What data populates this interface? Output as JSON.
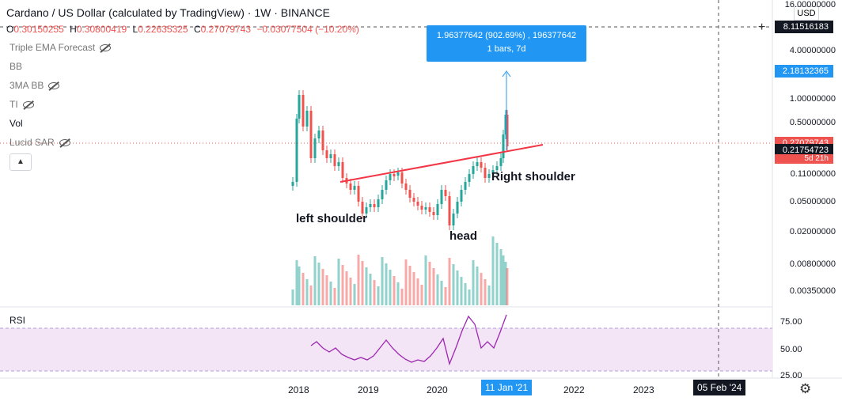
{
  "header": {
    "title": "Cardano / US Dollar (calculated by TradingView) · 1W · BINANCE",
    "ohlc": {
      "o_label": "O",
      "o_value": "0.30150255",
      "h_label": "H",
      "h_value": "0.30800419",
      "l_label": "L",
      "l_value": "0.22635325",
      "c_label": "C",
      "c_value": "0.27079743",
      "change": "−0.03077504 (−10.20%)"
    }
  },
  "indicators": [
    {
      "label": "Triple EMA Forecast",
      "hidden": true
    },
    {
      "label": "BB",
      "hidden": false
    },
    {
      "label": "3MA BB",
      "hidden": true
    },
    {
      "label": "TI",
      "hidden": true
    },
    {
      "label": "Vol",
      "hidden": false
    },
    {
      "label": "Lucid SAR",
      "hidden": true
    }
  ],
  "currency_badge": "USD",
  "price_axis": [
    "16.00000000",
    "4.00000000",
    "1.00000000",
    "0.50000000",
    "0.11000000",
    "0.05000000",
    "0.02000000",
    "0.00800000",
    "0.00350000"
  ],
  "price_tags": {
    "crosshair": "8.11516183",
    "target": "2.18132365",
    "last": "0.27079743",
    "current": "0.21754723",
    "countdown": "5d 21h"
  },
  "measure": {
    "line1": "1.96377642 (902.69%) , 196377642",
    "line2": "1 bars, 7d"
  },
  "annotations": {
    "left": "left shoulder",
    "head": "head",
    "right": "Right shoulder"
  },
  "rsi": {
    "label": "RSI",
    "axis": [
      "75.00",
      "50.00",
      "25.00"
    ]
  },
  "time_axis": [
    "2018",
    "2019",
    "2020",
    "2022",
    "2023"
  ],
  "time_tags": {
    "cursor": "11 Jan '21",
    "crosshair": "05 Feb '24"
  },
  "colors": {
    "up": "#26a69a",
    "down": "#ef5350",
    "neckline": "#f23645",
    "rsi": "#9c27b0",
    "accent": "#2196f3"
  }
}
